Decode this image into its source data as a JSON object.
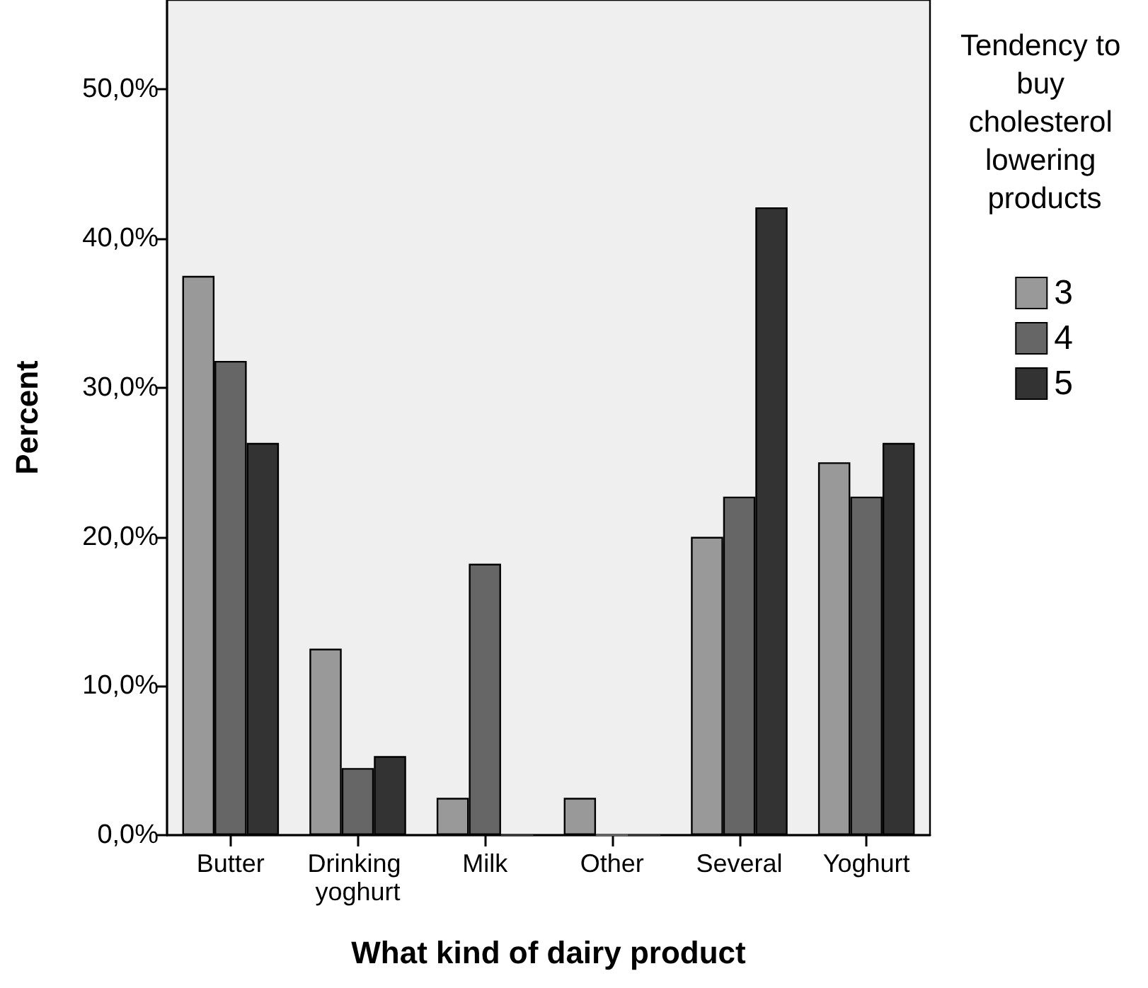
{
  "chart_data": {
    "type": "bar",
    "xlabel": "What kind of dairy product",
    "ylabel": "Percent",
    "legend_title": "Tendency to buy cholesterol lowering products",
    "categories": [
      "Butter",
      "Drinking yoghurt",
      "Milk",
      "Other",
      "Several",
      "Yoghurt"
    ],
    "series": [
      {
        "name": "3",
        "color": "#999999",
        "values": [
          37.5,
          12.5,
          2.5,
          2.5,
          20.0,
          25.0
        ]
      },
      {
        "name": "4",
        "color": "#666666",
        "values": [
          31.8,
          4.5,
          18.2,
          0,
          22.7,
          22.7
        ]
      },
      {
        "name": "5",
        "color": "#333333",
        "values": [
          26.3,
          5.3,
          0,
          0,
          42.1,
          26.3
        ]
      }
    ],
    "ylim": [
      0,
      56
    ],
    "yticks": [
      {
        "value": 0,
        "label": "0,0%"
      },
      {
        "value": 10,
        "label": "10,0%"
      },
      {
        "value": 20,
        "label": "20,0%"
      },
      {
        "value": 30,
        "label": "30,0%"
      },
      {
        "value": 40,
        "label": "40,0%"
      },
      {
        "value": 50,
        "label": "50,0%"
      }
    ],
    "grid": false,
    "legend": "right"
  }
}
